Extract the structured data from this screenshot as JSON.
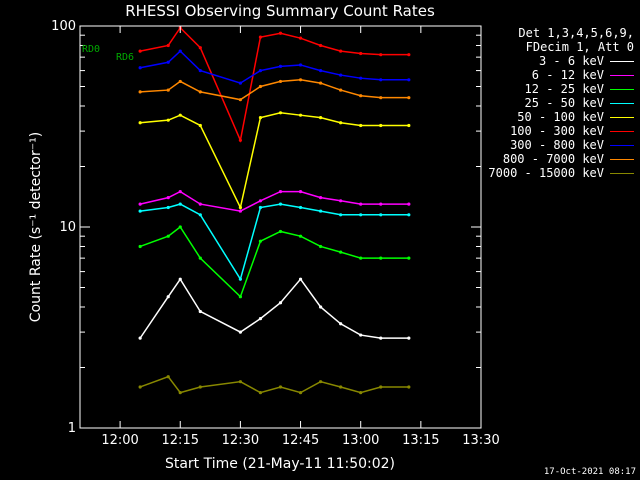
{
  "chart_data": {
    "type": "line",
    "title": "RHESSI Observing Summary Count Rates",
    "xlabel": "Start Time (21-May-11 11:50:02)",
    "ylabel": "Count Rate (s⁻¹ detector⁻¹)",
    "y_scale": "log",
    "ylim": [
      1,
      100
    ],
    "y_ticks": [
      "1",
      "10",
      "100"
    ],
    "xlim": [
      "11:50",
      "13:30"
    ],
    "x_ticks": [
      "12:00",
      "12:15",
      "12:30",
      "12:45",
      "13:00",
      "13:15",
      "13:30"
    ],
    "legend_header": [
      "Det 1,3,4,5,6,9,",
      "FDecim 1, Att 0"
    ],
    "legend_position": "right",
    "grid": false,
    "annotations": [
      "RD0",
      "RD6"
    ],
    "series": [
      {
        "name": "3 - 6 keV",
        "color": "#ffffff",
        "x": [
          "12:05",
          "12:12",
          "12:15",
          "12:20",
          "12:30",
          "12:35",
          "12:40",
          "12:45",
          "12:50",
          "12:55",
          "13:00",
          "13:05",
          "13:12"
        ],
        "y": [
          2.8,
          4.5,
          5.5,
          3.8,
          3.0,
          3.5,
          4.2,
          5.5,
          4.0,
          3.3,
          2.9,
          2.8,
          2.8
        ]
      },
      {
        "name": "6 - 12 keV",
        "color": "#ff00ff",
        "x": [
          "12:05",
          "12:12",
          "12:15",
          "12:20",
          "12:30",
          "12:35",
          "12:40",
          "12:45",
          "12:50",
          "12:55",
          "13:00",
          "13:05",
          "13:12"
        ],
        "y": [
          13,
          14,
          15,
          13,
          12,
          13.5,
          15,
          15,
          14,
          13.5,
          13,
          13,
          13
        ]
      },
      {
        "name": "12 - 25 keV",
        "color": "#00ff00",
        "x": [
          "12:05",
          "12:12",
          "12:15",
          "12:20",
          "12:30",
          "12:35",
          "12:40",
          "12:45",
          "12:50",
          "12:55",
          "13:00",
          "13:05",
          "13:12"
        ],
        "y": [
          8,
          9,
          10,
          7,
          4.5,
          8.5,
          9.5,
          9,
          8,
          7.5,
          7,
          7,
          7
        ]
      },
      {
        "name": "25 - 50 keV",
        "color": "#00ffff",
        "x": [
          "12:05",
          "12:12",
          "12:15",
          "12:20",
          "12:30",
          "12:35",
          "12:40",
          "12:45",
          "12:50",
          "12:55",
          "13:00",
          "13:05",
          "13:12"
        ],
        "y": [
          12,
          12.5,
          13,
          11.5,
          5.5,
          12.5,
          13,
          12.5,
          12,
          11.5,
          11.5,
          11.5,
          11.5
        ]
      },
      {
        "name": "50 - 100 keV",
        "color": "#ffff00",
        "x": [
          "12:05",
          "12:12",
          "12:15",
          "12:20",
          "12:30",
          "12:35",
          "12:40",
          "12:45",
          "12:50",
          "12:55",
          "13:00",
          "13:05",
          "13:12"
        ],
        "y": [
          33,
          34,
          36,
          32,
          12.5,
          35,
          37,
          36,
          35,
          33,
          32,
          32,
          32
        ]
      },
      {
        "name": "100 - 300 keV",
        "color": "#ff0000",
        "x": [
          "12:05",
          "12:12",
          "12:15",
          "12:20",
          "12:30",
          "12:35",
          "12:40",
          "12:45",
          "12:50",
          "12:55",
          "13:00",
          "13:05",
          "13:12"
        ],
        "y": [
          75,
          80,
          98,
          78,
          27,
          88,
          92,
          87,
          80,
          75,
          73,
          72,
          72
        ]
      },
      {
        "name": "300 - 800 keV",
        "color": "#0000ff",
        "x": [
          "12:05",
          "12:12",
          "12:15",
          "12:20",
          "12:30",
          "12:35",
          "12:40",
          "12:45",
          "12:50",
          "12:55",
          "13:00",
          "13:05",
          "13:12"
        ],
        "y": [
          62,
          66,
          75,
          60,
          52,
          60,
          63,
          64,
          60,
          57,
          55,
          54,
          54
        ]
      },
      {
        "name": "800 - 7000 keV",
        "color": "#ff8800",
        "x": [
          "12:05",
          "12:12",
          "12:15",
          "12:20",
          "12:30",
          "12:35",
          "12:40",
          "12:45",
          "12:50",
          "12:55",
          "13:00",
          "13:05",
          "13:12"
        ],
        "y": [
          47,
          48,
          53,
          47,
          43,
          50,
          53,
          54,
          52,
          48,
          45,
          44,
          44
        ]
      },
      {
        "name": "7000 - 15000 keV",
        "color": "#888800",
        "x": [
          "12:05",
          "12:12",
          "12:15",
          "12:20",
          "12:30",
          "12:35",
          "12:40",
          "12:45",
          "12:50",
          "12:55",
          "13:00",
          "13:05",
          "13:12"
        ],
        "y": [
          1.6,
          1.8,
          1.5,
          1.6,
          1.7,
          1.5,
          1.6,
          1.5,
          1.7,
          1.6,
          1.5,
          1.6,
          1.6
        ]
      }
    ]
  },
  "timestamp": "17-Oct-2021 08:17"
}
